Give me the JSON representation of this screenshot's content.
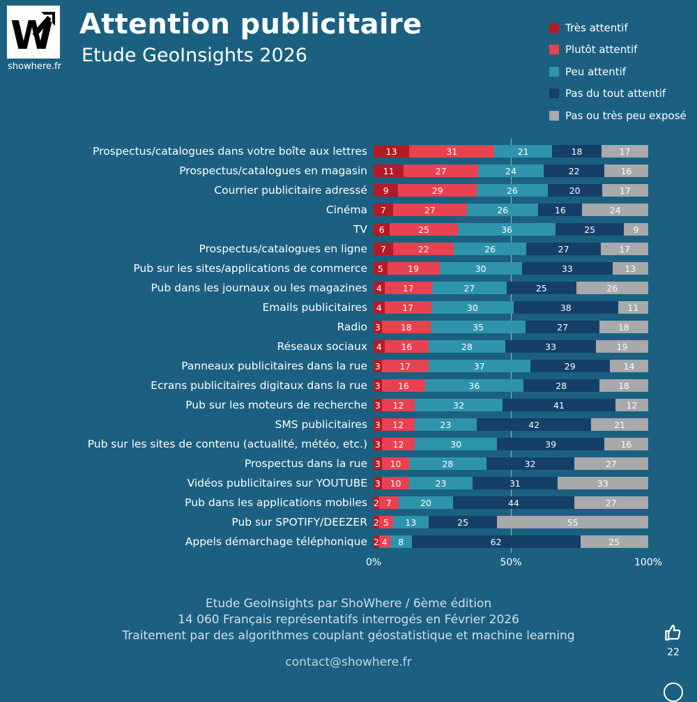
{
  "logo": {
    "letter": "W",
    "site": "showhere.fr"
  },
  "header": {
    "title": "Attention publicitaire",
    "subtitle": "Etude GeoInsights 2026"
  },
  "legend": [
    {
      "label": "Très attentif",
      "color": "#b21b26"
    },
    {
      "label": "Plutôt attentif",
      "color": "#e84150"
    },
    {
      "label": "Peu attentif",
      "color": "#2e94ab"
    },
    {
      "label": "Pas du tout attentif",
      "color": "#153f66"
    },
    {
      "label": "Pas ou très peu exposé",
      "color": "#a7a9ab"
    }
  ],
  "chart_data": {
    "type": "bar",
    "stacked": true,
    "orientation": "horizontal",
    "unit": "%",
    "xlim": [
      0,
      100
    ],
    "x_ticks": [
      "0%",
      "50%",
      "100%"
    ],
    "grid": "vertical line at 50%",
    "legend_position": "top-right",
    "series_names": [
      "Très attentif",
      "Plutôt attentif",
      "Peu attentif",
      "Pas du tout attentif",
      "Pas ou très peu exposé"
    ],
    "categories": [
      "Prospectus/catalogues dans votre boîte aux lettres",
      "Prospectus/catalogues en magasin",
      "Courrier publicitaire adressé",
      "Cinéma",
      "TV",
      "Prospectus/catalogues en ligne",
      "Pub sur les sites/applications de commerce",
      "Pub dans les journaux ou les magazines",
      "Emails publicitaires",
      "Radio",
      "Réseaux sociaux",
      "Panneaux publicitaires dans la rue",
      "Ecrans publicitaires digitaux dans la rue",
      "Pub sur les moteurs de recherche",
      "SMS publicitaires",
      "Pub sur les sites de contenu (actualité, météo, etc.)",
      "Prospectus dans la rue",
      "Vidéos publicitaires sur YOUTUBE",
      "Pub dans les applications mobiles",
      "Pub sur SPOTIFY/DEEZER",
      "Appels démarchage téléphonique"
    ],
    "rows": [
      [
        13,
        31,
        21,
        18,
        17
      ],
      [
        11,
        27,
        24,
        22,
        16
      ],
      [
        9,
        29,
        26,
        20,
        17
      ],
      [
        7,
        27,
        26,
        16,
        24
      ],
      [
        6,
        25,
        36,
        25,
        9
      ],
      [
        7,
        22,
        26,
        27,
        17
      ],
      [
        5,
        19,
        30,
        33,
        13
      ],
      [
        4,
        17,
        27,
        25,
        26
      ],
      [
        4,
        17,
        30,
        38,
        11
      ],
      [
        3,
        18,
        35,
        27,
        18
      ],
      [
        4,
        16,
        28,
        33,
        19
      ],
      [
        3,
        17,
        37,
        29,
        14
      ],
      [
        3,
        16,
        36,
        28,
        18
      ],
      [
        3,
        12,
        32,
        41,
        12
      ],
      [
        3,
        12,
        23,
        42,
        21
      ],
      [
        3,
        12,
        30,
        39,
        16
      ],
      [
        3,
        10,
        28,
        32,
        27
      ],
      [
        3,
        10,
        23,
        31,
        33
      ],
      [
        2,
        7,
        20,
        44,
        27
      ],
      [
        2,
        5,
        13,
        25,
        55
      ],
      [
        2,
        4,
        8,
        62,
        25
      ]
    ],
    "title": "Attention publicitaire",
    "subtitle": "Etude GeoInsights 2026"
  },
  "footer": {
    "line1": "Etude GeoInsights par ShoWhere / 6ème édition",
    "line2": "14 060 Français représentatifs interrogés en Février 2026",
    "line3": "Traitement par des algorithmes couplant géostatistique et machine learning",
    "contact": "contact@showhere.fr"
  },
  "reactions": {
    "likes": "22"
  }
}
